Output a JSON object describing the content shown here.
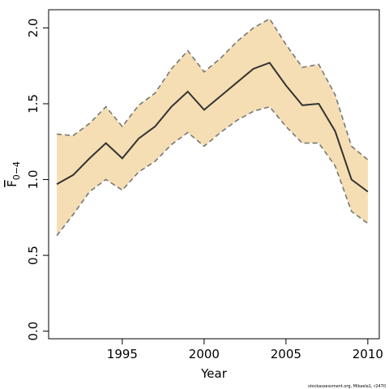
{
  "chart_data": {
    "type": "line",
    "title": "",
    "xlabel": "Year",
    "ylabel": "F",
    "ylabel_subscript": "0−4",
    "xlim": [
      1990.5,
      2010.7
    ],
    "ylim": [
      -0.05,
      2.12
    ],
    "x_ticks": [
      1995,
      2000,
      2005,
      2010
    ],
    "y_ticks": [
      0.0,
      0.5,
      1.0,
      1.5,
      2.0
    ],
    "y_tick_labels": [
      "0.0",
      "0.5",
      "1.0",
      "1.5",
      "2.0"
    ],
    "grid": false,
    "legend": "none",
    "x": [
      1991,
      1992,
      1993,
      1994,
      1995,
      1996,
      1997,
      1998,
      1999,
      2000,
      2001,
      2002,
      2003,
      2004,
      2005,
      2006,
      2007,
      2008,
      2009,
      2010
    ],
    "series": [
      {
        "role": "estimate",
        "values": [
          0.97,
          1.03,
          1.14,
          1.24,
          1.14,
          1.27,
          1.35,
          1.48,
          1.58,
          1.46,
          1.55,
          1.64,
          1.73,
          1.77,
          1.62,
          1.49,
          1.5,
          1.32,
          1.0,
          0.92
        ]
      },
      {
        "role": "upper",
        "values": [
          1.3,
          1.29,
          1.37,
          1.48,
          1.35,
          1.49,
          1.57,
          1.73,
          1.85,
          1.71,
          1.8,
          1.91,
          2.0,
          2.06,
          1.89,
          1.74,
          1.76,
          1.56,
          1.22,
          1.13
        ]
      },
      {
        "role": "lower",
        "values": [
          0.63,
          0.77,
          0.92,
          1.0,
          0.93,
          1.05,
          1.12,
          1.23,
          1.31,
          1.22,
          1.31,
          1.39,
          1.45,
          1.48,
          1.35,
          1.24,
          1.24,
          1.09,
          0.79,
          0.71
        ]
      }
    ]
  },
  "footer": {
    "credit": "stockassessment.org, Mikaela1, r2470"
  },
  "colors": {
    "band": "#f5deb3",
    "line": "#333333",
    "bound": "#777777",
    "axis": "#000000"
  }
}
